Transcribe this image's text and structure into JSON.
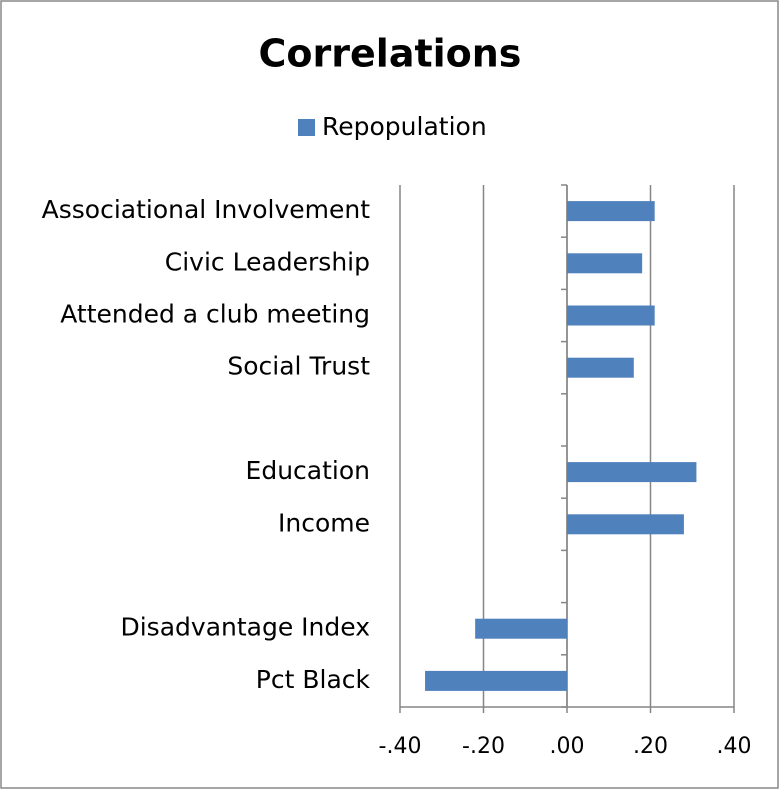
{
  "chart_data": {
    "type": "barh",
    "title": "Correlations",
    "categories": [
      "Associational Involvement",
      "Civic Leadership",
      "Attended a club meeting",
      "Social Trust",
      null,
      "Education",
      "Income",
      null,
      "Disadvantage Index",
      "Pct Black"
    ],
    "series": [
      {
        "name": "Repopulation",
        "color": "#4f81bd",
        "values": [
          0.21,
          0.18,
          0.21,
          0.16,
          null,
          0.31,
          0.28,
          null,
          -0.22,
          -0.34
        ]
      }
    ],
    "xlim": [
      -0.4,
      0.4
    ],
    "xticks": [
      {
        "value": -0.4,
        "label": "-.40"
      },
      {
        "value": -0.2,
        "label": "-.20"
      },
      {
        "value": 0,
        "label": ".00"
      },
      {
        "value": 0.2,
        "label": ".20"
      },
      {
        "value": 0.4,
        "label": ".40"
      }
    ],
    "grid": true,
    "legend": "top"
  }
}
